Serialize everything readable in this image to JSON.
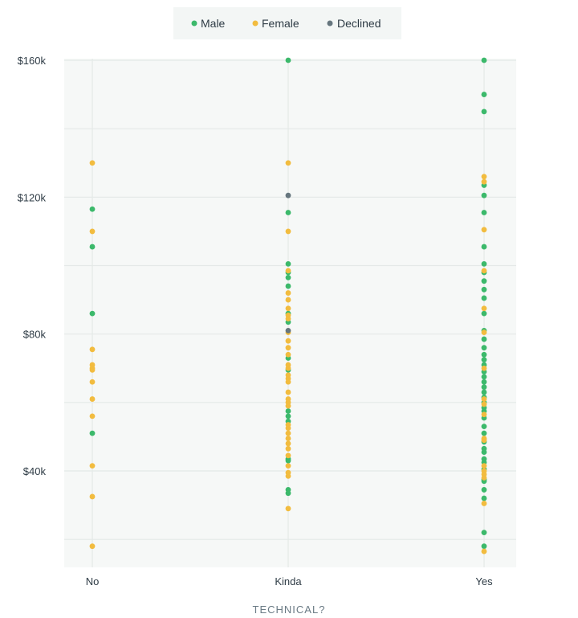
{
  "legend": [
    {
      "label": "Male",
      "color": "#3cb96b"
    },
    {
      "label": "Female",
      "color": "#f2bc3f"
    },
    {
      "label": "Declined",
      "color": "#66767e"
    }
  ],
  "chart_data": {
    "type": "scatter",
    "title": "",
    "xlabel": "TECHNICAL?",
    "ylabel": "",
    "categories": [
      "No",
      "Kinda",
      "Yes"
    ],
    "yticks": [
      "$40k",
      "$80k",
      "$120k",
      "$160k"
    ],
    "ylim": [
      13000,
      160000
    ],
    "legend_position": "top-center",
    "grid": true,
    "series": [
      {
        "name": "Male",
        "color": "#3cb96b",
        "points": [
          [
            "No",
            116500
          ],
          [
            "No",
            105500
          ],
          [
            "No",
            86000
          ],
          [
            "No",
            51000
          ],
          [
            "Kinda",
            160000
          ],
          [
            "Kinda",
            115500
          ],
          [
            "Kinda",
            100500
          ],
          [
            "Kinda",
            98000
          ],
          [
            "Kinda",
            96500
          ],
          [
            "Kinda",
            94000
          ],
          [
            "Kinda",
            86000
          ],
          [
            "Kinda",
            83500
          ],
          [
            "Kinda",
            73000
          ],
          [
            "Kinda",
            69500
          ],
          [
            "Kinda",
            57500
          ],
          [
            "Kinda",
            56000
          ],
          [
            "Kinda",
            54500
          ],
          [
            "Kinda",
            43500
          ],
          [
            "Kinda",
            43000
          ],
          [
            "Kinda",
            34500
          ],
          [
            "Kinda",
            33500
          ],
          [
            "Yes",
            160000
          ],
          [
            "Yes",
            150000
          ],
          [
            "Yes",
            145000
          ],
          [
            "Yes",
            123500
          ],
          [
            "Yes",
            120500
          ],
          [
            "Yes",
            115500
          ],
          [
            "Yes",
            105500
          ],
          [
            "Yes",
            100500
          ],
          [
            "Yes",
            98000
          ],
          [
            "Yes",
            95500
          ],
          [
            "Yes",
            93000
          ],
          [
            "Yes",
            90500
          ],
          [
            "Yes",
            86000
          ],
          [
            "Yes",
            81000
          ],
          [
            "Yes",
            78500
          ],
          [
            "Yes",
            76000
          ],
          [
            "Yes",
            74000
          ],
          [
            "Yes",
            72500
          ],
          [
            "Yes",
            71000
          ],
          [
            "Yes",
            69000
          ],
          [
            "Yes",
            67500
          ],
          [
            "Yes",
            66000
          ],
          [
            "Yes",
            64500
          ],
          [
            "Yes",
            63000
          ],
          [
            "Yes",
            61500
          ],
          [
            "Yes",
            60000
          ],
          [
            "Yes",
            58500
          ],
          [
            "Yes",
            57500
          ],
          [
            "Yes",
            55500
          ],
          [
            "Yes",
            53000
          ],
          [
            "Yes",
            51000
          ],
          [
            "Yes",
            48500
          ],
          [
            "Yes",
            46500
          ],
          [
            "Yes",
            45500
          ],
          [
            "Yes",
            43500
          ],
          [
            "Yes",
            42500
          ],
          [
            "Yes",
            40500
          ],
          [
            "Yes",
            37500
          ],
          [
            "Yes",
            37000
          ],
          [
            "Yes",
            34500
          ],
          [
            "Yes",
            32000
          ],
          [
            "Yes",
            22000
          ],
          [
            "Yes",
            18000
          ]
        ]
      },
      {
        "name": "Female",
        "color": "#f2bc3f",
        "points": [
          [
            "No",
            130000
          ],
          [
            "No",
            110000
          ],
          [
            "No",
            75500
          ],
          [
            "No",
            71000
          ],
          [
            "No",
            70000
          ],
          [
            "No",
            69500
          ],
          [
            "No",
            66000
          ],
          [
            "No",
            61000
          ],
          [
            "No",
            56000
          ],
          [
            "No",
            41500
          ],
          [
            "No",
            32500
          ],
          [
            "No",
            18000
          ],
          [
            "Kinda",
            130000
          ],
          [
            "Kinda",
            110000
          ],
          [
            "Kinda",
            98500
          ],
          [
            "Kinda",
            92000
          ],
          [
            "Kinda",
            90000
          ],
          [
            "Kinda",
            87500
          ],
          [
            "Kinda",
            85500
          ],
          [
            "Kinda",
            84500
          ],
          [
            "Kinda",
            80500
          ],
          [
            "Kinda",
            78000
          ],
          [
            "Kinda",
            76000
          ],
          [
            "Kinda",
            74000
          ],
          [
            "Kinda",
            71000
          ],
          [
            "Kinda",
            70000
          ],
          [
            "Kinda",
            68000
          ],
          [
            "Kinda",
            67000
          ],
          [
            "Kinda",
            66000
          ],
          [
            "Kinda",
            63000
          ],
          [
            "Kinda",
            61000
          ],
          [
            "Kinda",
            60000
          ],
          [
            "Kinda",
            59000
          ],
          [
            "Kinda",
            53500
          ],
          [
            "Kinda",
            52500
          ],
          [
            "Kinda",
            51000
          ],
          [
            "Kinda",
            49500
          ],
          [
            "Kinda",
            48000
          ],
          [
            "Kinda",
            46500
          ],
          [
            "Kinda",
            44500
          ],
          [
            "Kinda",
            41500
          ],
          [
            "Kinda",
            39500
          ],
          [
            "Kinda",
            38500
          ],
          [
            "Kinda",
            29000
          ],
          [
            "Yes",
            126000
          ],
          [
            "Yes",
            124500
          ],
          [
            "Yes",
            110500
          ],
          [
            "Yes",
            98500
          ],
          [
            "Yes",
            87500
          ],
          [
            "Yes",
            80500
          ],
          [
            "Yes",
            70000
          ],
          [
            "Yes",
            61000
          ],
          [
            "Yes",
            59500
          ],
          [
            "Yes",
            56500
          ],
          [
            "Yes",
            49500
          ],
          [
            "Yes",
            49000
          ],
          [
            "Yes",
            41500
          ],
          [
            "Yes",
            40000
          ],
          [
            "Yes",
            39000
          ],
          [
            "Yes",
            38000
          ],
          [
            "Yes",
            30500
          ],
          [
            "Yes",
            16500
          ]
        ]
      },
      {
        "name": "Declined",
        "color": "#66767e",
        "points": [
          [
            "Kinda",
            120500
          ],
          [
            "Kinda",
            81000
          ]
        ]
      }
    ]
  }
}
